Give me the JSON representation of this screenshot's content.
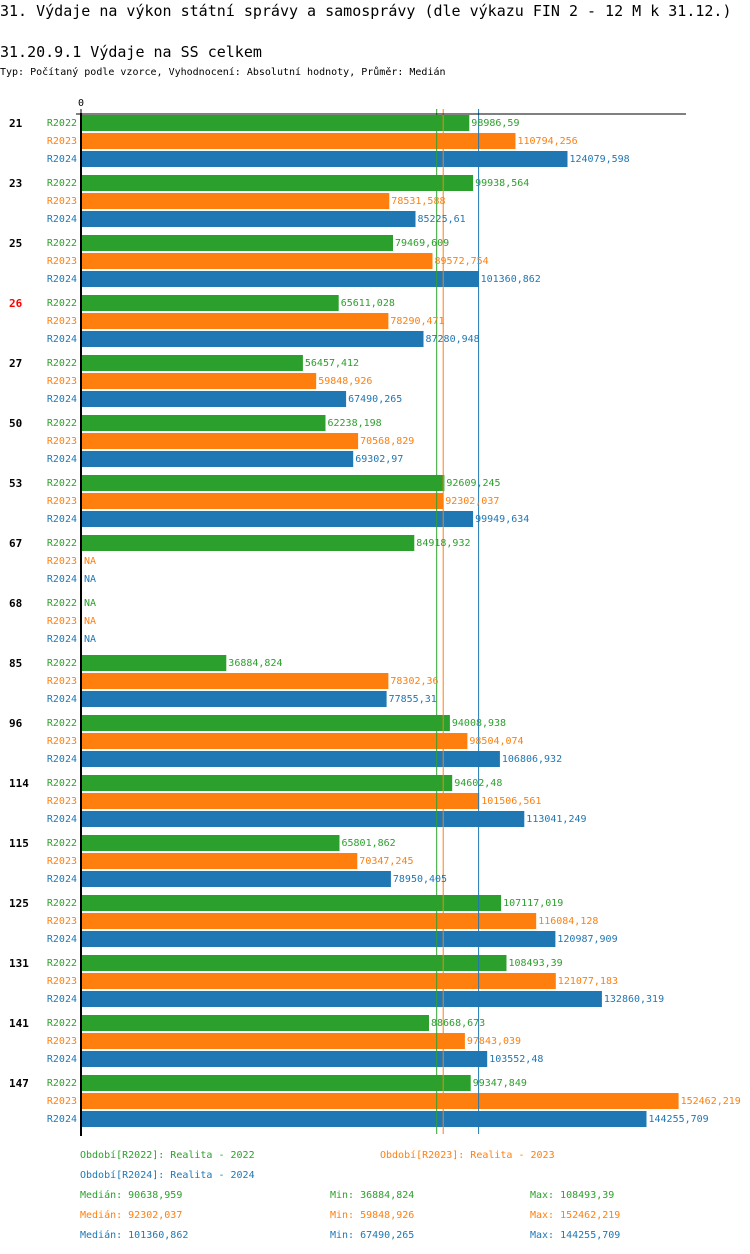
{
  "header": {
    "title": "31. Výdaje na výkon státní správy a samosprávy (dle výkazu FIN 2 - 12 M k 31.12.)",
    "subtitle": "31.20.9.1 Výdaje na SS celkem",
    "type_line": "Typ: Počítaný podle vzorce, Vyhodnocení: Absolutní hodnoty, Průměr: Medián"
  },
  "colors": {
    "R2022": "#2ca02c",
    "R2023": "#ff7f0e",
    "R2024": "#1f77b4",
    "highlight": "#ff0000",
    "axis": "#000000"
  },
  "chart_data": {
    "type": "bar",
    "orientation": "horizontal",
    "title": "31.20.9.1 Výdaje na SS celkem",
    "xlabel": "",
    "ylabel": "",
    "x_tick_labels": [
      "0"
    ],
    "xlim": [
      0,
      154000
    ],
    "grid": false,
    "legend_position": "bottom",
    "na_label": "NA",
    "highlighted_category": "26",
    "categories": [
      "21",
      "23",
      "25",
      "26",
      "27",
      "50",
      "53",
      "67",
      "68",
      "85",
      "96",
      "114",
      "115",
      "125",
      "131",
      "141",
      "147"
    ],
    "series": [
      {
        "name": "R2022",
        "values": [
          98986.59,
          99938.564,
          79469.609,
          65611.028,
          56457.412,
          62238.198,
          92609.245,
          84918.932,
          null,
          36884.824,
          94008.938,
          94602.48,
          65801.862,
          107117.019,
          108493.39,
          88668.673,
          99347.849
        ]
      },
      {
        "name": "R2023",
        "values": [
          110794.256,
          78531.588,
          89572.754,
          78290.471,
          59848.926,
          70568.829,
          92302.037,
          null,
          null,
          78302.36,
          98504.074,
          101506.561,
          70347.245,
          116084.128,
          121077.183,
          97843.039,
          152462.219
        ]
      },
      {
        "name": "R2024",
        "values": [
          124079.598,
          85225.61,
          101360.862,
          87280.948,
          67490.265,
          69302.97,
          99949.634,
          null,
          null,
          77855.31,
          106806.932,
          113041.249,
          78950.405,
          120987.909,
          132860.319,
          103552.48,
          144255.709
        ]
      }
    ],
    "value_labels": [
      [
        "98986,59",
        "110794,256",
        "124079,598"
      ],
      [
        "99938,564",
        "78531,588",
        "85225,61"
      ],
      [
        "79469,609",
        "89572,754",
        "101360,862"
      ],
      [
        "65611,028",
        "78290,471",
        "87280,948"
      ],
      [
        "56457,412",
        "59848,926",
        "67490,265"
      ],
      [
        "62238,198",
        "70568,829",
        "69302,97"
      ],
      [
        "92609,245",
        "92302,037",
        "99949,634"
      ],
      [
        "84918,932",
        "NA",
        "NA"
      ],
      [
        "NA",
        "NA",
        "NA"
      ],
      [
        "36884,824",
        "78302,36",
        "77855,31"
      ],
      [
        "94008,938",
        "98504,074",
        "106806,932"
      ],
      [
        "94602,48",
        "101506,561",
        "113041,249"
      ],
      [
        "65801,862",
        "70347,245",
        "78950,405"
      ],
      [
        "107117,019",
        "116084,128",
        "120987,909"
      ],
      [
        "108493,39",
        "121077,183",
        "132860,319"
      ],
      [
        "88668,673",
        "97843,039",
        "103552,48"
      ],
      [
        "99347,849",
        "152462,219",
        "144255,709"
      ]
    ],
    "medians": {
      "R2022": 90638.959,
      "R2023": 92302.037,
      "R2024": 101360.862
    }
  },
  "legend": {
    "periods": [
      {
        "series": "R2022",
        "text": "Období[R2022]: Realita - 2022"
      },
      {
        "series": "R2023",
        "text": "Období[R2023]: Realita - 2023"
      },
      {
        "series": "R2024",
        "text": "Období[R2024]: Realita - 2024"
      }
    ],
    "stats": [
      {
        "series": "R2022",
        "median": "Medián: 90638,959",
        "min": "Min: 36884,824",
        "max": "Max: 108493,39"
      },
      {
        "series": "R2023",
        "median": "Medián: 92302,037",
        "min": "Min: 59848,926",
        "max": "Max: 152462,219"
      },
      {
        "series": "R2024",
        "median": "Medián: 101360,862",
        "min": "Min: 67490,265",
        "max": "Max: 144255,709"
      }
    ]
  }
}
